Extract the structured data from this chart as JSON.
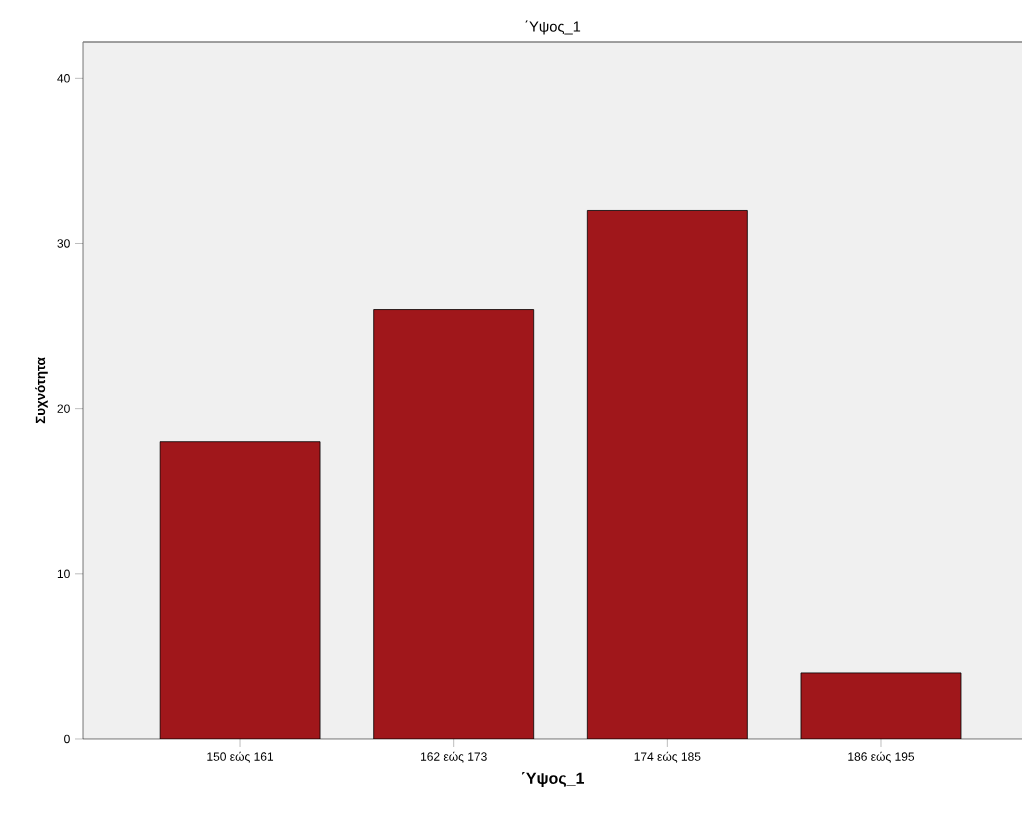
{
  "chart_data": {
    "type": "bar",
    "title": "΄Υψος_1",
    "xlabel": "΄Υψος_1",
    "ylabel": "Συχνότητα",
    "categories": [
      "150 εώς 161",
      "162 εώς 173",
      "174 εώς 185",
      "186 εώς 195"
    ],
    "values": [
      18,
      26,
      32,
      4
    ],
    "color": "#a0171b",
    "ylim": [
      0,
      42.2
    ],
    "yticks": [
      0,
      10,
      20,
      30,
      40
    ]
  }
}
